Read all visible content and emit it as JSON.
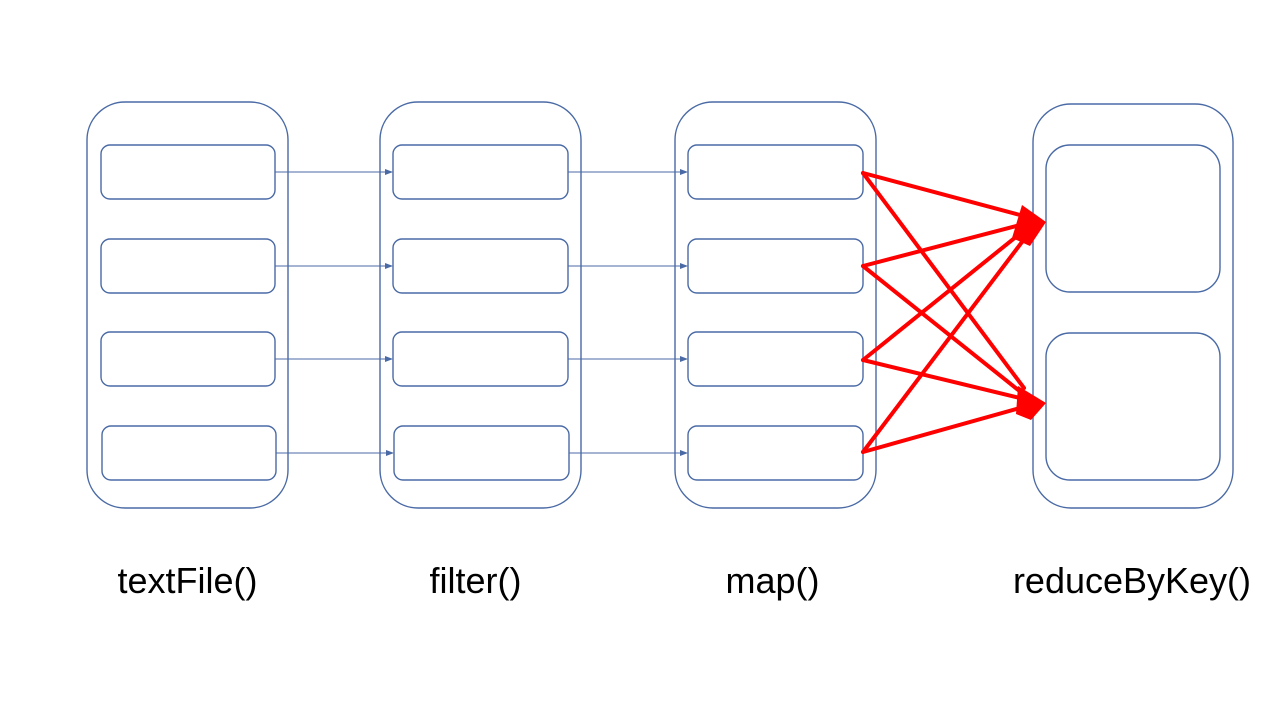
{
  "colors": {
    "outline": "#4a6aa5",
    "narrow_arrow": "#4a6aa5",
    "shuffle_arrow": "#ff0000",
    "background": "#ffffff"
  },
  "stages": [
    {
      "label": "textFile()",
      "partitions": 4
    },
    {
      "label": "filter()",
      "partitions": 4
    },
    {
      "label": "map()",
      "partitions": 4
    },
    {
      "label": "reduceByKey()",
      "partitions": 2
    }
  ]
}
